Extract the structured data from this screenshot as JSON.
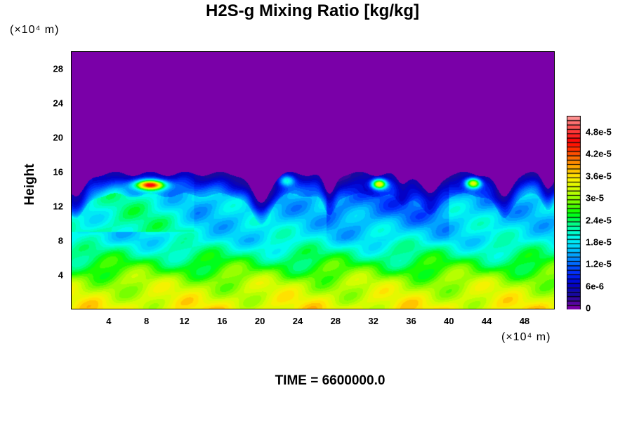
{
  "chart_data": {
    "type": "heatmap",
    "title": "H2S-g Mixing Ratio [kg/kg]",
    "xlabel_unit": "(×10⁴ m)",
    "ylabel": "Height",
    "ylabel_unit": "(×10⁴ m)",
    "xlim": [
      0,
      51.2
    ],
    "ylim": [
      0,
      30
    ],
    "x_ticks": [
      "4",
      "8",
      "12",
      "16",
      "20",
      "24",
      "28",
      "32",
      "36",
      "40",
      "44",
      "48"
    ],
    "y_ticks": [
      "4",
      "8",
      "12",
      "16",
      "20",
      "24",
      "28"
    ],
    "colorbar": {
      "min": 0,
      "max": 5.28e-05,
      "levels": 44,
      "tick_values": [
        0,
        6e-06,
        1.2e-05,
        1.8e-05,
        2.4e-05,
        3e-05,
        3.6e-05,
        4.2e-05,
        4.8e-05
      ],
      "tick_labels": [
        "0",
        "6e-6",
        "1.2e-5",
        "1.8e-5",
        "2.4e-5",
        "3e-5",
        "3.6e-5",
        "4.2e-5",
        "4.8e-5"
      ],
      "colors": [
        "#7a00a8",
        "#1a0a9a",
        "#0000cc",
        "#0030ff",
        "#0080ff",
        "#00ccff",
        "#00ffee",
        "#00ff90",
        "#00ff00",
        "#80ff00",
        "#d0ff00",
        "#ffee00",
        "#ffa000",
        "#ff5000",
        "#ff0000",
        "#ff4040",
        "#ff9090"
      ]
    },
    "features": {
      "top_region_value": 0,
      "mixed_layer_top_height": 15.8,
      "hotspots": [
        {
          "x": 8.3,
          "y": 14.5,
          "peak": 5.2e-05
        },
        {
          "x": 22.8,
          "y": 15.0,
          "peak": 2.8e-05
        },
        {
          "x": 32.6,
          "y": 14.6,
          "peak": 4.6e-05
        },
        {
          "x": 42.6,
          "y": 14.7,
          "peak": 4.4e-05
        }
      ]
    },
    "time_label": "TIME = 6600000.0"
  }
}
